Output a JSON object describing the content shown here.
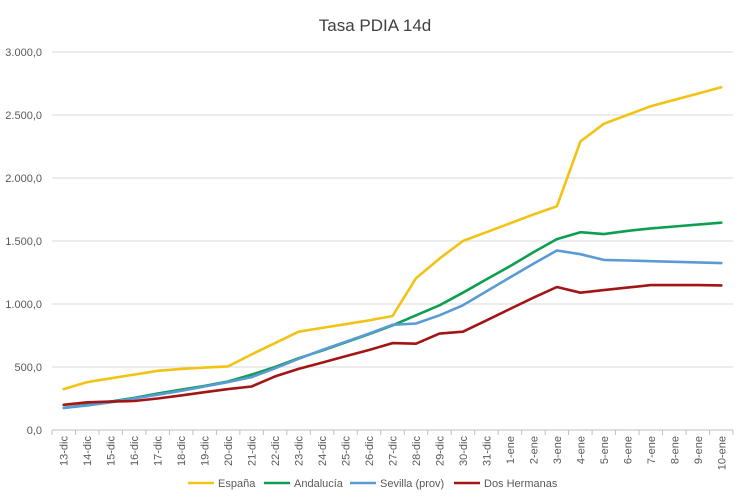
{
  "chart_data": {
    "type": "line",
    "title": "Tasa PDIA 14d",
    "xlabel": "",
    "ylabel": "",
    "ylim": [
      0,
      3000
    ],
    "y_ticks": [
      0,
      500,
      1000,
      1500,
      2000,
      2500,
      3000
    ],
    "y_tick_labels": [
      "0,0",
      "500,0",
      "1.000,0",
      "1.500,0",
      "2.000,0",
      "2.500,0",
      "3.000,0"
    ],
    "grid": true,
    "legend_position": "bottom",
    "categories": [
      "13-dic",
      "14-dic",
      "15-dic",
      "16-dic",
      "17-dic",
      "18-dic",
      "19-dic",
      "20-dic",
      "21-dic",
      "22-dic",
      "23-dic",
      "24-dic",
      "25-dic",
      "26-dic",
      "27-dic",
      "28-dic",
      "29-dic",
      "30-dic",
      "31-dic",
      "1-ene",
      "2-ene",
      "3-ene",
      "4-ene",
      "5-ene",
      "6-ene",
      "7-ene",
      "8-ene",
      "9-ene",
      "10-ene"
    ],
    "series": [
      {
        "name": "España",
        "color": "#f2c314",
        "values": [
          325,
          380,
          410,
          440,
          470,
          485,
          495,
          505,
          600,
          690,
          780,
          810,
          840,
          870,
          905,
          1205,
          1360,
          1500,
          1570,
          1640,
          1710,
          1775,
          2290,
          2430,
          2500,
          2570,
          2620,
          2670,
          2720
        ]
      },
      {
        "name": "Andalucía",
        "color": "#0e9e52",
        "values": [
          175,
          200,
          225,
          255,
          290,
          320,
          350,
          385,
          440,
          500,
          570,
          630,
          695,
          760,
          830,
          910,
          990,
          1090,
          1195,
          1300,
          1410,
          1515,
          1570,
          1555,
          1580,
          1600,
          1615,
          1630,
          1645
        ]
      },
      {
        "name": "Sevilla (prov)",
        "color": "#5b9bd5",
        "values": [
          175,
          195,
          220,
          250,
          280,
          310,
          345,
          380,
          420,
          490,
          565,
          635,
          700,
          765,
          835,
          845,
          910,
          990,
          1100,
          1210,
          1320,
          1425,
          1395,
          1350,
          1345,
          1340,
          1335,
          1330,
          1325
        ]
      },
      {
        "name": "Dos Hermanas",
        "color": "#a31515",
        "values": [
          200,
          220,
          225,
          230,
          250,
          275,
          300,
          325,
          345,
          425,
          485,
          535,
          585,
          635,
          690,
          685,
          765,
          780,
          870,
          960,
          1050,
          1135,
          1090,
          1110,
          1130,
          1150,
          1150,
          1150,
          1148
        ]
      }
    ]
  }
}
